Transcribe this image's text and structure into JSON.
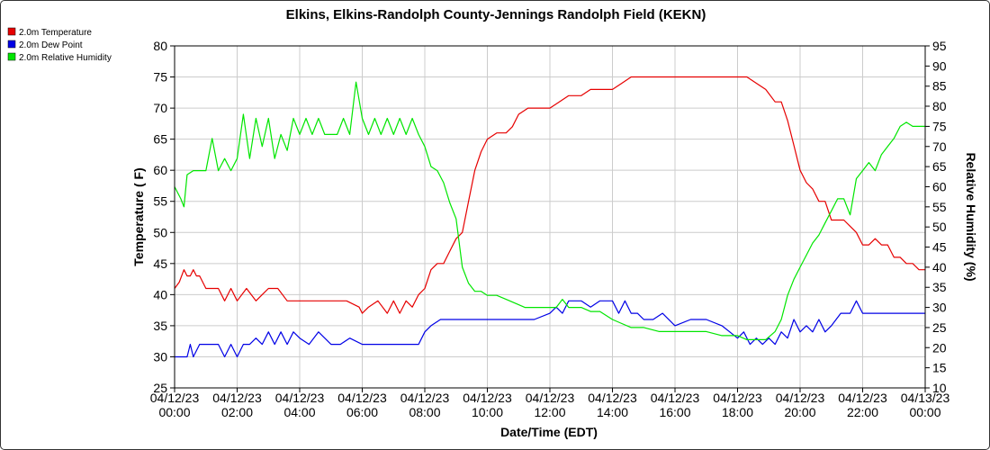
{
  "chart_data": {
    "type": "line",
    "title": "Elkins, Elkins-Randolph County-Jennings Randolph Field (KEKN)",
    "xlabel": "Date/Time (EDT)",
    "ylabel_left": "Temperature ( F)",
    "ylabel_right": "Relative Humidity (%)",
    "xlim": [
      0,
      24
    ],
    "ylim_left": [
      25,
      80
    ],
    "ylim_right": [
      10,
      95
    ],
    "y_ticks_left": [
      "25",
      "30",
      "35",
      "40",
      "45",
      "50",
      "55",
      "60",
      "65",
      "70",
      "75",
      "80"
    ],
    "y_ticks_right": [
      "10",
      "15",
      "20",
      "25",
      "30",
      "35",
      "40",
      "45",
      "50",
      "55",
      "60",
      "65",
      "70",
      "75",
      "80",
      "85",
      "90",
      "95"
    ],
    "x_ticks": [
      {
        "date": "04/12/23",
        "time": "00:00"
      },
      {
        "date": "04/12/23",
        "time": "02:00"
      },
      {
        "date": "04/12/23",
        "time": "04:00"
      },
      {
        "date": "04/12/23",
        "time": "06:00"
      },
      {
        "date": "04/12/23",
        "time": "08:00"
      },
      {
        "date": "04/12/23",
        "time": "10:00"
      },
      {
        "date": "04/12/23",
        "time": "12:00"
      },
      {
        "date": "04/12/23",
        "time": "14:00"
      },
      {
        "date": "04/12/23",
        "time": "16:00"
      },
      {
        "date": "04/12/23",
        "time": "18:00"
      },
      {
        "date": "04/12/23",
        "time": "20:00"
      },
      {
        "date": "04/12/23",
        "time": "22:00"
      },
      {
        "date": "04/13/23",
        "time": "00:00"
      }
    ],
    "grid": true,
    "legend_position": "top-left outside",
    "series": [
      {
        "name": "2.0m Temperature",
        "color": "#e60000",
        "axis": "left",
        "x": [
          0,
          0.15,
          0.3,
          0.4,
          0.5,
          0.6,
          0.7,
          0.8,
          1.0,
          1.2,
          1.4,
          1.6,
          1.8,
          2.0,
          2.3,
          2.6,
          2.8,
          3.0,
          3.3,
          3.6,
          3.8,
          4.0,
          4.5,
          5.0,
          5.5,
          5.9,
          6.0,
          6.2,
          6.5,
          6.8,
          7.0,
          7.2,
          7.4,
          7.6,
          7.8,
          8.0,
          8.2,
          8.4,
          8.6,
          8.8,
          9.0,
          9.2,
          9.4,
          9.6,
          9.8,
          10.0,
          10.3,
          10.6,
          10.8,
          11.0,
          11.3,
          11.6,
          12.0,
          12.3,
          12.6,
          13.0,
          13.3,
          13.6,
          14.0,
          14.3,
          14.6,
          15.0,
          15.5,
          16.0,
          16.5,
          17.0,
          17.5,
          18.0,
          18.3,
          18.6,
          18.9,
          19.2,
          19.4,
          19.6,
          19.8,
          20.0,
          20.2,
          20.4,
          20.6,
          20.8,
          21.0,
          21.2,
          21.4,
          21.6,
          21.8,
          22.0,
          22.2,
          22.4,
          22.6,
          22.8,
          23.0,
          23.2,
          23.4,
          23.6,
          23.8,
          24.0
        ],
        "y": [
          41,
          42,
          44,
          43,
          43,
          44,
          43,
          43,
          41,
          41,
          41,
          39,
          41,
          39,
          41,
          39,
          40,
          41,
          41,
          39,
          39,
          39,
          39,
          39,
          39,
          38,
          37,
          38,
          39,
          37,
          39,
          37,
          39,
          38,
          40,
          41,
          44,
          45,
          45,
          47,
          49,
          50,
          55,
          60,
          63,
          65,
          66,
          66,
          67,
          69,
          70,
          70,
          70,
          71,
          72,
          72,
          73,
          73,
          73,
          74,
          75,
          75,
          75,
          75,
          75,
          75,
          75,
          75,
          75,
          74,
          73,
          71,
          71,
          68,
          64,
          60,
          58,
          57,
          55,
          55,
          52,
          52,
          52,
          51,
          50,
          48,
          48,
          49,
          48,
          48,
          46,
          46,
          45,
          45,
          44,
          44
        ]
      },
      {
        "name": "2.0m Dew Point",
        "color": "#0000e6",
        "axis": "left",
        "x": [
          0,
          0.2,
          0.4,
          0.5,
          0.6,
          0.8,
          1.0,
          1.2,
          1.4,
          1.6,
          1.8,
          2.0,
          2.2,
          2.4,
          2.6,
          2.8,
          3.0,
          3.2,
          3.4,
          3.6,
          3.8,
          4.0,
          4.3,
          4.6,
          5.0,
          5.3,
          5.6,
          6.0,
          6.5,
          7.0,
          7.5,
          7.8,
          8.0,
          8.2,
          8.5,
          9.0,
          9.5,
          10.0,
          10.5,
          11.0,
          11.5,
          12.0,
          12.2,
          12.4,
          12.6,
          12.8,
          13.0,
          13.3,
          13.6,
          14.0,
          14.2,
          14.4,
          14.6,
          14.8,
          15.0,
          15.3,
          15.6,
          16.0,
          16.5,
          17.0,
          17.5,
          18.0,
          18.2,
          18.4,
          18.6,
          18.8,
          19.0,
          19.2,
          19.4,
          19.6,
          19.8,
          20.0,
          20.2,
          20.4,
          20.6,
          20.8,
          21.0,
          21.3,
          21.6,
          21.8,
          22.0,
          22.5,
          23.0,
          23.5,
          24.0
        ],
        "y": [
          30,
          30,
          30,
          32,
          30,
          32,
          32,
          32,
          32,
          30,
          32,
          30,
          32,
          32,
          33,
          32,
          34,
          32,
          34,
          32,
          34,
          33,
          32,
          34,
          32,
          32,
          33,
          32,
          32,
          32,
          32,
          32,
          34,
          35,
          36,
          36,
          36,
          36,
          36,
          36,
          36,
          37,
          38,
          37,
          39,
          39,
          39,
          38,
          39,
          39,
          37,
          39,
          37,
          37,
          36,
          36,
          37,
          35,
          36,
          36,
          35,
          33,
          34,
          32,
          33,
          32,
          33,
          32,
          34,
          33,
          36,
          34,
          35,
          34,
          36,
          34,
          35,
          37,
          37,
          39,
          37,
          37,
          37,
          37,
          37
        ]
      },
      {
        "name": "2.0m Relative Humidity",
        "color": "#00e600",
        "axis": "right",
        "x": [
          0,
          0.2,
          0.3,
          0.4,
          0.6,
          0.8,
          1.0,
          1.2,
          1.4,
          1.6,
          1.8,
          2.0,
          2.2,
          2.4,
          2.6,
          2.8,
          3.0,
          3.2,
          3.4,
          3.6,
          3.8,
          4.0,
          4.2,
          4.4,
          4.6,
          4.8,
          5.0,
          5.2,
          5.4,
          5.6,
          5.8,
          6.0,
          6.2,
          6.4,
          6.6,
          6.8,
          7.0,
          7.2,
          7.4,
          7.6,
          7.8,
          8.0,
          8.2,
          8.4,
          8.6,
          8.8,
          9.0,
          9.2,
          9.4,
          9.6,
          9.8,
          10.0,
          10.3,
          10.6,
          10.9,
          11.2,
          11.6,
          12.0,
          12.2,
          12.4,
          12.6,
          12.8,
          13.0,
          13.3,
          13.6,
          14.0,
          14.3,
          14.6,
          15.0,
          15.5,
          16.0,
          16.5,
          17.0,
          17.5,
          18.0,
          18.3,
          18.6,
          18.9,
          19.2,
          19.4,
          19.6,
          19.8,
          20.0,
          20.2,
          20.4,
          20.6,
          20.8,
          21.0,
          21.2,
          21.4,
          21.6,
          21.8,
          22.0,
          22.2,
          22.4,
          22.6,
          22.8,
          23.0,
          23.2,
          23.4,
          23.6,
          23.8,
          24.0
        ],
        "y": [
          60,
          57,
          55,
          63,
          64,
          64,
          64,
          72,
          64,
          67,
          64,
          67,
          78,
          67,
          77,
          70,
          77,
          67,
          73,
          69,
          77,
          73,
          77,
          73,
          77,
          73,
          73,
          73,
          77,
          73,
          86,
          77,
          73,
          77,
          73,
          77,
          73,
          77,
          73,
          77,
          73,
          70,
          65,
          64,
          61,
          56,
          52,
          40,
          36,
          34,
          34,
          33,
          33,
          32,
          31,
          30,
          30,
          30,
          30,
          32,
          30,
          30,
          30,
          29,
          29,
          27,
          26,
          25,
          25,
          24,
          24,
          24,
          24,
          23,
          23,
          22,
          22,
          22,
          24,
          27,
          33,
          37,
          40,
          43,
          46,
          48,
          51,
          54,
          57,
          57,
          53,
          62,
          64,
          66,
          64,
          68,
          70,
          72,
          75,
          76,
          75,
          75,
          75
        ],
        "_note": ""
      }
    ]
  }
}
